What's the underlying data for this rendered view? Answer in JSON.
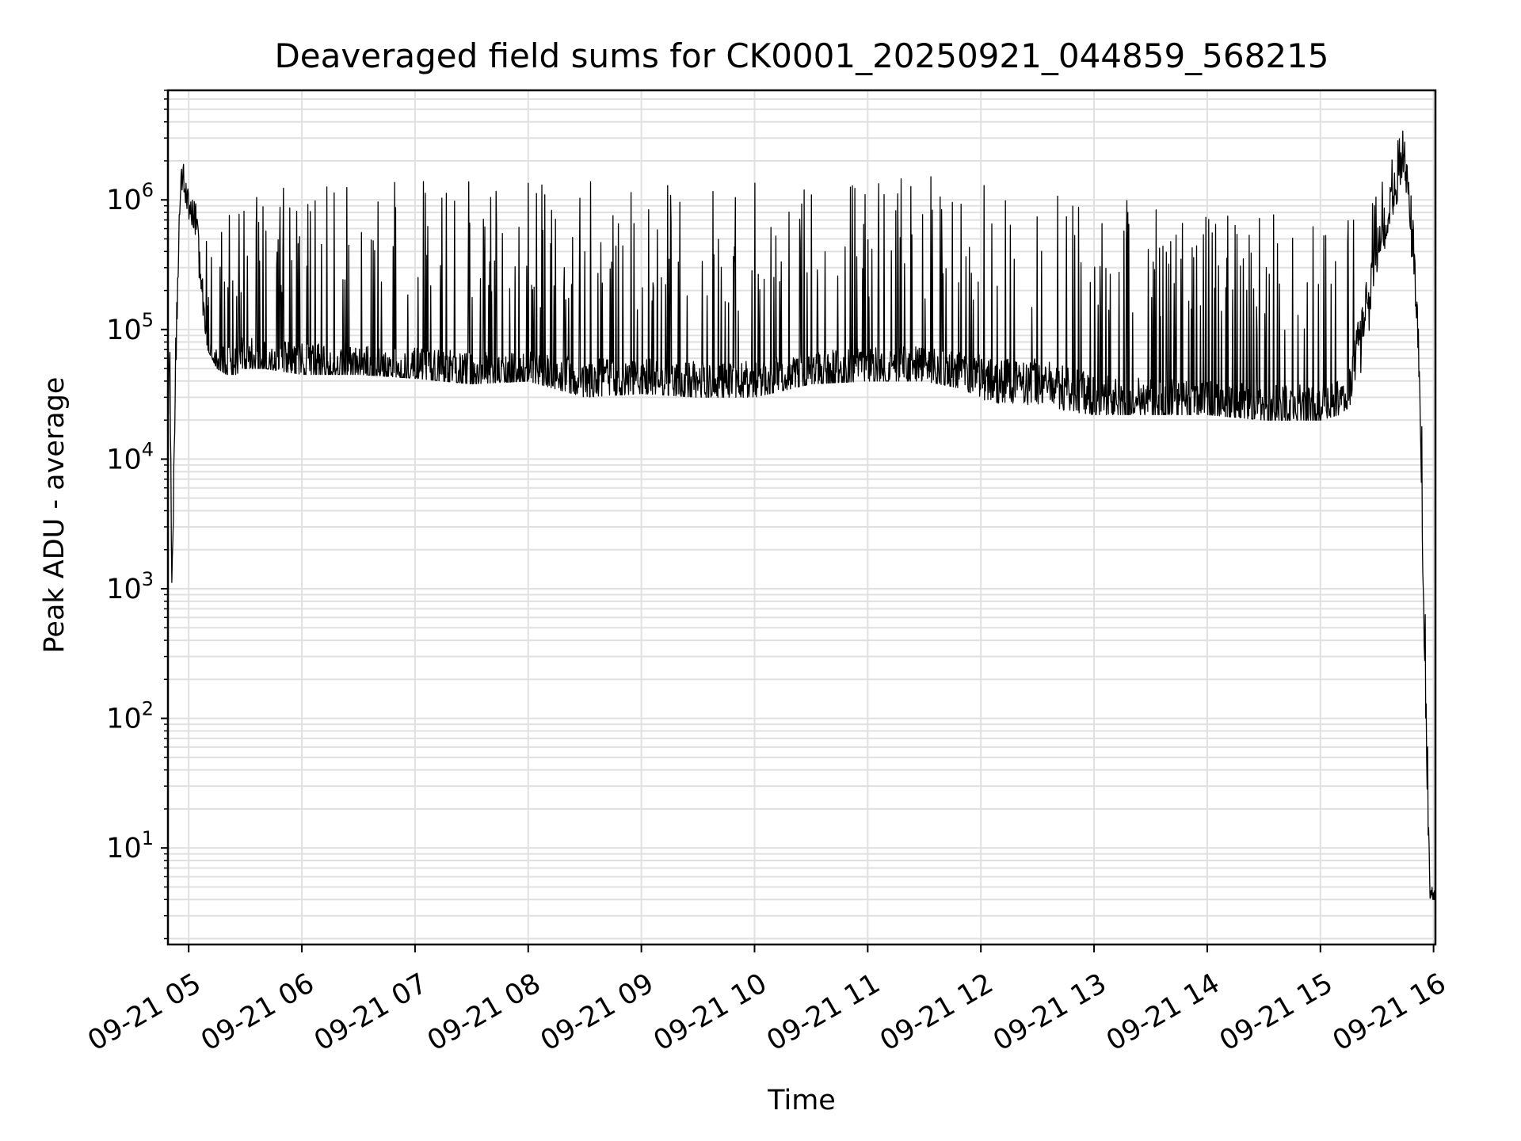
{
  "chart_data": {
    "type": "line",
    "title": "Deaveraged field sums for CK0001_20250921_044859_568215",
    "xlabel": "Time",
    "ylabel": "Peak ADU - average",
    "yscale": "log",
    "ylim": [
      1.8,
      7000000
    ],
    "xlim": [
      "2025-09-21 04:49",
      "2025-09-21 16:01"
    ],
    "grid": true,
    "line_color": "#000000",
    "grid_color": "#e0e0e0",
    "x_ticks": [
      "09-21 05",
      "09-21 06",
      "09-21 07",
      "09-21 08",
      "09-21 09",
      "09-21 10",
      "09-21 11",
      "09-21 12",
      "09-21 13",
      "09-21 14",
      "09-21 15",
      "09-21 16"
    ],
    "y_ticks": [
      {
        "value": 10,
        "base": "10",
        "exp": "1"
      },
      {
        "value": 100,
        "base": "10",
        "exp": "2"
      },
      {
        "value": 1000,
        "base": "10",
        "exp": "3"
      },
      {
        "value": 10000,
        "base": "10",
        "exp": "4"
      },
      {
        "value": 100000,
        "base": "10",
        "exp": "5"
      },
      {
        "value": 1000000,
        "base": "10",
        "exp": "6"
      }
    ],
    "series": [
      {
        "x": [
          "2025-09-21 04:49",
          "2025-09-21 04:50",
          "2025-09-21 04:51",
          "2025-09-21 04:52",
          "2025-09-21 04:53",
          "2025-09-21 04:55",
          "2025-09-21 04:57",
          "2025-09-21 05:00",
          "2025-09-21 05:03",
          "2025-09-21 05:05",
          "2025-09-21 05:07",
          "2025-09-21 05:10",
          "2025-09-21 05:15",
          "2025-09-21 05:20",
          "2025-09-21 05:25",
          "2025-09-21 05:30",
          "2025-09-21 05:40",
          "2025-09-21 06:00",
          "2025-09-21 06:30",
          "2025-09-21 07:00",
          "2025-09-21 07:30",
          "2025-09-21 08:00",
          "2025-09-21 08:30",
          "2025-09-21 09:00",
          "2025-09-21 09:30",
          "2025-09-21 10:00",
          "2025-09-21 10:30",
          "2025-09-21 11:00",
          "2025-09-21 11:30",
          "2025-09-21 11:50",
          "2025-09-21 12:10",
          "2025-09-21 12:30",
          "2025-09-21 13:00",
          "2025-09-21 13:30",
          "2025-09-21 14:00",
          "2025-09-21 14:30",
          "2025-09-21 15:00",
          "2025-09-21 15:10",
          "2025-09-21 15:15",
          "2025-09-21 15:20",
          "2025-09-21 15:30",
          "2025-09-21 15:40",
          "2025-09-21 15:44",
          "2025-09-21 15:48",
          "2025-09-21 15:52",
          "2025-09-21 15:55",
          "2025-09-21 15:58",
          "2025-09-21 16:01"
        ],
        "low": [
          20000,
          30000,
          700,
          2500,
          10000,
          300000,
          1200000,
          700000,
          600000,
          300000,
          150000,
          70000,
          50000,
          45000,
          45000,
          50000,
          50000,
          45000,
          45000,
          42000,
          38000,
          40000,
          30000,
          32000,
          30000,
          30000,
          38000,
          40000,
          40000,
          35000,
          25000,
          25000,
          22000,
          22000,
          22000,
          20000,
          20000,
          22000,
          25000,
          35000,
          200000,
          600000,
          1200000,
          300000,
          40000,
          200,
          4,
          4
        ],
        "high": [
          30000,
          120000,
          3000,
          8000,
          400000,
          1500000,
          2300000,
          1100000,
          1100000,
          700000,
          600000,
          500000,
          500000,
          700000,
          1200000,
          1500000,
          1500000,
          1500000,
          1600000,
          1500000,
          1400000,
          1400000,
          1400000,
          1300000,
          1300000,
          1400000,
          1600000,
          1600000,
          1600000,
          1500000,
          1300000,
          1300000,
          1200000,
          1000000,
          900000,
          800000,
          700000,
          600000,
          900000,
          1100000,
          1600000,
          2800000,
          3500000,
          1700000,
          150000,
          5000,
          5,
          5
        ],
        "typical": [
          25000,
          60000,
          1500,
          5000,
          50000,
          700000,
          1800000,
          900000,
          800000,
          500000,
          200000,
          60000,
          50000,
          55000,
          55000,
          60000,
          55000,
          55000,
          50000,
          48000,
          45000,
          45000,
          40000,
          40000,
          38000,
          38000,
          48000,
          50000,
          50000,
          45000,
          40000,
          40000,
          30000,
          28000,
          28000,
          25000,
          25000,
          28000,
          30000,
          80000,
          400000,
          1200000,
          2500000,
          800000,
          80000,
          500,
          4,
          4
        ]
      }
    ]
  }
}
